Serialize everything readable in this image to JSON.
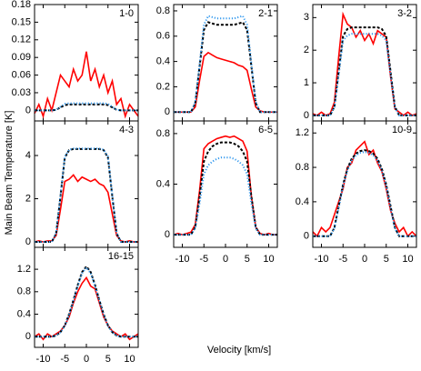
{
  "y_label": "Main Beam Temperature [K]",
  "x_label": "Velocity [km/s]",
  "chart_data": [
    {
      "type": "line",
      "title": "1-0",
      "x": [
        -12,
        -11,
        -10,
        -9,
        -8,
        -7,
        -6,
        -5,
        -4,
        -3,
        -2,
        -1,
        0,
        1,
        2,
        3,
        4,
        5,
        6,
        7,
        8,
        9,
        10,
        11,
        12
      ],
      "xlim": [
        -12,
        12
      ],
      "xticks": [
        -10,
        -5,
        0,
        5,
        10
      ],
      "xtick_labels": false,
      "ylim": [
        -0.018,
        0.18
      ],
      "yticks": [
        0,
        0.03,
        0.06,
        0.09,
        0.12,
        0.15,
        0.18
      ],
      "series": [
        {
          "color": "#ff0000",
          "style": "solid",
          "values": [
            -0.005,
            0.01,
            -0.01,
            0.02,
            0.0,
            0.03,
            0.06,
            0.05,
            0.04,
            0.07,
            0.05,
            0.06,
            0.1,
            0.05,
            0.07,
            0.04,
            0.06,
            0.03,
            0.05,
            0.01,
            0.02,
            -0.01,
            0.01,
            0.0,
            -0.01
          ]
        },
        {
          "color": "#000000",
          "style": "dashed",
          "values": [
            0,
            0,
            0,
            0,
            0,
            0.001,
            0.005,
            0.009,
            0.01,
            0.01,
            0.01,
            0.01,
            0.01,
            0.01,
            0.01,
            0.01,
            0.01,
            0.009,
            0.005,
            0.001,
            0,
            0,
            0,
            0,
            0
          ]
        },
        {
          "color": "#3399ee",
          "style": "dotted",
          "values": [
            0,
            0,
            0,
            0,
            0,
            0.001,
            0.006,
            0.011,
            0.012,
            0.012,
            0.012,
            0.012,
            0.012,
            0.012,
            0.012,
            0.012,
            0.012,
            0.011,
            0.006,
            0.001,
            0,
            0,
            0,
            0,
            0
          ]
        }
      ]
    },
    {
      "type": "line",
      "title": "2-1",
      "x": [
        -12,
        -11,
        -10,
        -9,
        -8,
        -7,
        -6,
        -5,
        -4,
        -3,
        -2,
        -1,
        0,
        1,
        2,
        3,
        4,
        5,
        6,
        7,
        8,
        9,
        10,
        11,
        12
      ],
      "xlim": [
        -12,
        12
      ],
      "xticks": [
        -10,
        -5,
        0,
        5,
        10
      ],
      "xtick_labels": false,
      "ylim": [
        -0.07,
        0.85
      ],
      "yticks": [
        0,
        0.2,
        0.4,
        0.6,
        0.8
      ],
      "series": [
        {
          "color": "#ff0000",
          "style": "solid",
          "values": [
            0,
            0,
            0,
            0,
            0,
            0.04,
            0.25,
            0.44,
            0.47,
            0.45,
            0.43,
            0.42,
            0.41,
            0.4,
            0.39,
            0.37,
            0.36,
            0.33,
            0.18,
            0.04,
            0.01,
            0,
            0,
            0,
            0
          ]
        },
        {
          "color": "#000000",
          "style": "dashed",
          "values": [
            0,
            0,
            0,
            0,
            0,
            0.07,
            0.36,
            0.65,
            0.71,
            0.7,
            0.69,
            0.69,
            0.69,
            0.69,
            0.69,
            0.7,
            0.71,
            0.65,
            0.36,
            0.07,
            0,
            0,
            0,
            0,
            0
          ]
        },
        {
          "color": "#3399ee",
          "style": "dotted",
          "values": [
            0,
            0,
            0,
            0,
            0,
            0.08,
            0.38,
            0.69,
            0.76,
            0.75,
            0.74,
            0.74,
            0.74,
            0.74,
            0.74,
            0.75,
            0.76,
            0.69,
            0.38,
            0.08,
            0,
            0,
            0,
            0,
            0
          ]
        }
      ]
    },
    {
      "type": "line",
      "title": "3-2",
      "x": [
        -12,
        -11,
        -10,
        -9,
        -8,
        -7,
        -6,
        -5,
        -4,
        -3,
        -2,
        -1,
        0,
        1,
        2,
        3,
        4,
        5,
        6,
        7,
        8,
        9,
        10,
        11,
        12
      ],
      "xlim": [
        -12,
        12
      ],
      "xticks": [
        -10,
        -5,
        0,
        5,
        10
      ],
      "xtick_labels": false,
      "ylim": [
        -0.17,
        3.4
      ],
      "yticks": [
        0,
        1,
        2,
        3
      ],
      "series": [
        {
          "color": "#ff0000",
          "style": "solid",
          "values": [
            0.05,
            0,
            0.1,
            0,
            0.05,
            0.4,
            1.8,
            3.1,
            2.8,
            2.7,
            2.4,
            2.6,
            2.3,
            2.5,
            2.2,
            2.6,
            2.5,
            2.4,
            1.2,
            0.2,
            0.1,
            0,
            0.1,
            0,
            0.05
          ]
        },
        {
          "color": "#000000",
          "style": "dashed",
          "values": [
            0,
            0,
            0,
            0,
            0,
            0.27,
            1.35,
            2.43,
            2.65,
            2.7,
            2.7,
            2.7,
            2.7,
            2.7,
            2.7,
            2.7,
            2.65,
            2.43,
            1.35,
            0.27,
            0,
            0,
            0,
            0,
            0
          ]
        },
        {
          "color": "#3399ee",
          "style": "dotted",
          "values": [
            0,
            0,
            0,
            0,
            0,
            0.25,
            1.25,
            2.3,
            2.45,
            2.5,
            2.5,
            2.5,
            2.5,
            2.5,
            2.5,
            2.5,
            2.45,
            2.3,
            1.25,
            0.25,
            0,
            0,
            0,
            0,
            0
          ]
        }
      ]
    },
    {
      "type": "line",
      "title": "4-3",
      "x": [
        -12,
        -11,
        -10,
        -9,
        -8,
        -7,
        -6,
        -5,
        -4,
        -3,
        -2,
        -1,
        0,
        1,
        2,
        3,
        4,
        5,
        6,
        7,
        8,
        9,
        10,
        11,
        12
      ],
      "xlim": [
        -12,
        12
      ],
      "xticks": [
        -10,
        -5,
        0,
        5,
        10
      ],
      "xtick_labels": false,
      "ylim": [
        -0.25,
        5.6
      ],
      "yticks": [
        0,
        2,
        4
      ],
      "series": [
        {
          "color": "#ff0000",
          "style": "solid",
          "values": [
            0,
            0.05,
            0,
            0.05,
            0.05,
            0.3,
            1.5,
            2.8,
            2.9,
            3.1,
            2.8,
            3.0,
            2.9,
            2.8,
            2.9,
            2.7,
            2.6,
            2.3,
            1.3,
            0.3,
            0.05,
            0,
            0.05,
            0,
            0
          ]
        },
        {
          "color": "#000000",
          "style": "dashed",
          "values": [
            0,
            0,
            0,
            0,
            0,
            0.4,
            2.1,
            3.9,
            4.25,
            4.3,
            4.3,
            4.3,
            4.3,
            4.3,
            4.3,
            4.3,
            4.25,
            3.9,
            2.1,
            0.4,
            0,
            0,
            0,
            0,
            0
          ]
        },
        {
          "color": "#3399ee",
          "style": "dotted",
          "values": [
            0,
            0,
            0,
            0,
            0,
            0.42,
            2.15,
            3.95,
            4.27,
            4.32,
            4.32,
            4.32,
            4.32,
            4.32,
            4.32,
            4.32,
            4.27,
            3.95,
            2.15,
            0.42,
            0,
            0,
            0,
            0,
            0
          ]
        }
      ]
    },
    {
      "type": "line",
      "title": "6-5",
      "x": [
        -12,
        -11,
        -10,
        -9,
        -8,
        -7,
        -6,
        -5,
        -4,
        -3,
        -2,
        -1,
        0,
        1,
        2,
        3,
        4,
        5,
        6,
        7,
        8,
        9,
        10,
        11,
        12
      ],
      "xlim": [
        -12,
        12
      ],
      "xticks": [
        -10,
        -5,
        0,
        5,
        10
      ],
      "xtick_labels": true,
      "ylim": [
        -0.1,
        0.9
      ],
      "yticks": [
        0,
        0.4,
        0.8
      ],
      "series": [
        {
          "color": "#ff0000",
          "style": "solid",
          "values": [
            0,
            0.01,
            0,
            0.01,
            0.02,
            0.08,
            0.35,
            0.68,
            0.72,
            0.74,
            0.76,
            0.77,
            0.78,
            0.77,
            0.78,
            0.76,
            0.74,
            0.66,
            0.3,
            0.06,
            0.01,
            0,
            0.01,
            0,
            0
          ]
        },
        {
          "color": "#000000",
          "style": "dashed",
          "values": [
            0,
            0,
            0,
            0,
            0,
            0.06,
            0.3,
            0.58,
            0.66,
            0.7,
            0.72,
            0.73,
            0.73,
            0.73,
            0.72,
            0.7,
            0.66,
            0.58,
            0.3,
            0.06,
            0,
            0,
            0,
            0,
            0
          ]
        },
        {
          "color": "#3399ee",
          "style": "dotted",
          "values": [
            0,
            0,
            0,
            0,
            0,
            0.05,
            0.25,
            0.48,
            0.55,
            0.58,
            0.6,
            0.61,
            0.61,
            0.61,
            0.6,
            0.58,
            0.55,
            0.48,
            0.25,
            0.05,
            0,
            0,
            0,
            0,
            0
          ]
        }
      ]
    },
    {
      "type": "line",
      "title": "10-9",
      "x": [
        -12,
        -11,
        -10,
        -9,
        -8,
        -7,
        -6,
        -5,
        -4,
        -3,
        -2,
        -1,
        0,
        1,
        2,
        3,
        4,
        5,
        6,
        7,
        8,
        9,
        10,
        11,
        12
      ],
      "xlim": [
        -12,
        12
      ],
      "xticks": [
        -10,
        -5,
        0,
        5,
        10
      ],
      "xtick_labels": true,
      "ylim": [
        -0.13,
        1.34
      ],
      "yticks": [
        0,
        0.4,
        0.8,
        1.2
      ],
      "series": [
        {
          "color": "#ff0000",
          "style": "solid",
          "values": [
            0.05,
            0,
            0.1,
            0.05,
            0.1,
            0.25,
            0.4,
            0.55,
            0.8,
            0.85,
            1.0,
            1.05,
            1.1,
            0.95,
            1.0,
            0.85,
            0.75,
            0.55,
            0.3,
            0.15,
            0.05,
            0.1,
            0,
            0.05,
            0
          ]
        },
        {
          "color": "#000000",
          "style": "dashed",
          "values": [
            0,
            0,
            0,
            0,
            0,
            0.1,
            0.35,
            0.6,
            0.78,
            0.9,
            0.96,
            0.99,
            1.0,
            0.99,
            0.96,
            0.9,
            0.78,
            0.6,
            0.35,
            0.1,
            0,
            0,
            0,
            0,
            0
          ]
        },
        {
          "color": "#3399ee",
          "style": "dotted",
          "values": [
            0,
            0,
            0,
            0,
            0,
            0.09,
            0.33,
            0.58,
            0.76,
            0.88,
            0.94,
            0.97,
            0.98,
            0.97,
            0.94,
            0.88,
            0.76,
            0.58,
            0.33,
            0.09,
            0,
            0,
            0,
            0,
            0
          ]
        }
      ]
    },
    {
      "type": "line",
      "title": "16-15",
      "x": [
        -12,
        -11,
        -10,
        -9,
        -8,
        -7,
        -6,
        -5,
        -4,
        -3,
        -2,
        -1,
        0,
        1,
        2,
        3,
        4,
        5,
        6,
        7,
        8,
        9,
        10,
        11,
        12
      ],
      "xlim": [
        -12,
        12
      ],
      "xticks": [
        -10,
        -5,
        0,
        5,
        10
      ],
      "xtick_labels": true,
      "ylim": [
        -0.19,
        1.59
      ],
      "yticks": [
        0,
        0.4,
        0.8,
        1.2
      ],
      "series": [
        {
          "color": "#ff0000",
          "style": "solid",
          "values": [
            0,
            0.05,
            -0.05,
            0.05,
            0,
            0.05,
            0.1,
            0.2,
            0.35,
            0.6,
            0.8,
            0.95,
            1.05,
            0.9,
            0.85,
            0.6,
            0.35,
            0.2,
            0.1,
            0.05,
            0,
            0.05,
            -0.05,
            0,
            0.05
          ]
        },
        {
          "color": "#000000",
          "style": "dashed",
          "values": [
            0,
            0,
            0,
            0,
            0,
            0.02,
            0.08,
            0.2,
            0.4,
            0.65,
            0.92,
            1.15,
            1.25,
            1.15,
            0.92,
            0.65,
            0.4,
            0.2,
            0.08,
            0.02,
            0,
            0,
            0,
            0,
            0
          ]
        },
        {
          "color": "#3399ee",
          "style": "dotted",
          "values": [
            0,
            0,
            0,
            0,
            0,
            0.02,
            0.08,
            0.19,
            0.39,
            0.64,
            0.9,
            1.13,
            1.23,
            1.13,
            0.9,
            0.64,
            0.39,
            0.19,
            0.08,
            0.02,
            0,
            0,
            0,
            0,
            0
          ]
        }
      ]
    }
  ]
}
